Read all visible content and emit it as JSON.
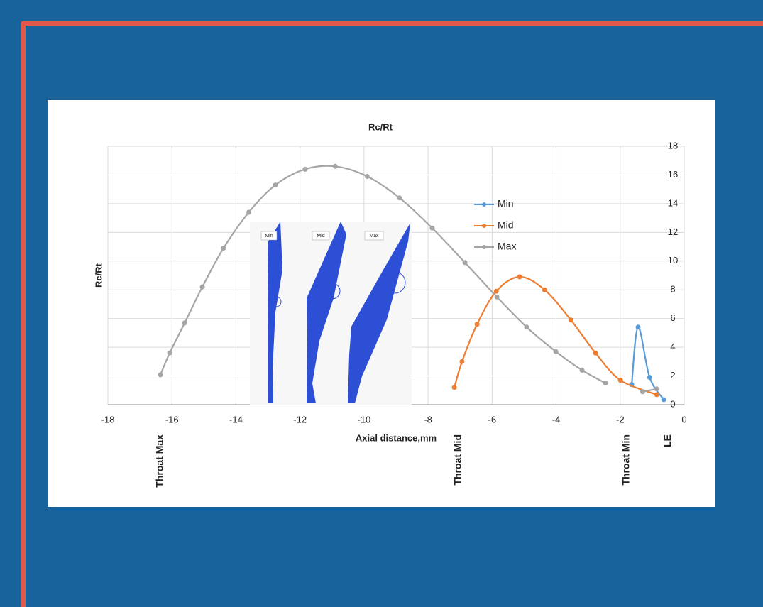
{
  "chart_data": {
    "type": "line",
    "title": "Rc/Rt",
    "x_label": "Axial distance,mm",
    "y_label": "Rc/Rt",
    "xlim": [
      -18,
      0
    ],
    "xticks": [
      -18,
      -16,
      -14,
      -12,
      -10,
      -8,
      -6,
      -4,
      -2,
      0
    ],
    "ylim": [
      0,
      18
    ],
    "yticks": [
      0,
      2,
      4,
      6,
      8,
      10,
      12,
      14,
      16,
      18
    ],
    "y_axis_side": "right",
    "grid": true,
    "legend_position": "center-right",
    "series": [
      {
        "name": "Min",
        "color": "#5b9bd5",
        "x": [
          -1.64,
          -1.44,
          -1.08,
          -0.64
        ],
        "values": [
          1.4,
          5.4,
          1.9,
          0.35
        ]
      },
      {
        "name": "Mid",
        "color": "#ed7d31",
        "x": [
          -7.18,
          -6.94,
          -6.47,
          -5.87,
          -5.14,
          -4.36,
          -3.54,
          -2.77,
          -1.99,
          -0.86
        ],
        "values": [
          1.2,
          3.0,
          5.6,
          7.9,
          8.9,
          8.0,
          5.9,
          3.6,
          1.7,
          0.7
        ]
      },
      {
        "name": "Max",
        "color": "#a5a5a5",
        "x": [
          -16.36,
          -16.07,
          -15.6,
          -15.05,
          -14.39,
          -13.6,
          -12.77,
          -11.84,
          -10.9,
          -9.9,
          -8.89,
          -7.87,
          -6.85,
          -5.85,
          -4.92,
          -4.01,
          -3.19,
          -2.46,
          null,
          -1.3,
          -0.86
        ],
        "values": [
          2.08,
          3.6,
          5.7,
          8.2,
          10.9,
          13.4,
          15.3,
          16.4,
          16.6,
          15.9,
          14.4,
          12.3,
          9.9,
          7.5,
          5.4,
          3.7,
          2.4,
          1.5,
          null,
          0.9,
          1.1
        ]
      }
    ],
    "annotations": [
      {
        "text": "Throat Max",
        "x": -16.36
      },
      {
        "text": "Throat Mid",
        "x": -7.05
      },
      {
        "text": "Throat Min",
        "x": -1.8
      },
      {
        "text": "LE",
        "x": -0.5
      }
    ],
    "inset_labels": [
      "Min",
      "Mid",
      "Max"
    ]
  }
}
